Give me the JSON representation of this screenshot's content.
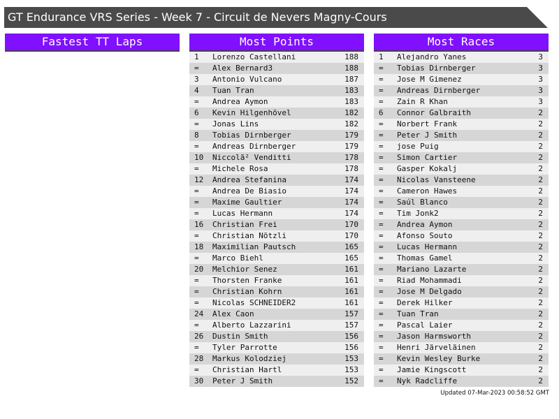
{
  "title": "GT Endurance VRS Series - Week 7 - Circuit de Nevers Magny-Cours",
  "panels": {
    "fastest": {
      "title": "Fastest TT Laps",
      "rows": []
    },
    "points": {
      "title": "Most Points",
      "rows": [
        [
          "1",
          "Lorenzo Castellani",
          "188"
        ],
        [
          "=",
          "Alex Bernard3",
          "188"
        ],
        [
          "3",
          "Antonio Vulcano",
          "187"
        ],
        [
          "4",
          "Tuan Tran",
          "183"
        ],
        [
          "=",
          "Andrea Aymon",
          "183"
        ],
        [
          "6",
          "Kevin Hilgenhövel",
          "182"
        ],
        [
          "=",
          "Jonas Lins",
          "182"
        ],
        [
          "8",
          "Tobias Dirnberger",
          "179"
        ],
        [
          "=",
          "Andreas Dirnberger",
          "179"
        ],
        [
          "10",
          "Niccolã² Venditti",
          "178"
        ],
        [
          "=",
          "Michele Rosa",
          "178"
        ],
        [
          "12",
          "Andrea Stefanina",
          "174"
        ],
        [
          "=",
          "Andrea De Biasio",
          "174"
        ],
        [
          "=",
          "Maxime Gaultier",
          "174"
        ],
        [
          "=",
          "Lucas Hermann",
          "174"
        ],
        [
          "16",
          "Christian Frei",
          "170"
        ],
        [
          "=",
          "Christian Nötzli",
          "170"
        ],
        [
          "18",
          "Maximilian Pautsch",
          "165"
        ],
        [
          "=",
          "Marco Biehl",
          "165"
        ],
        [
          "20",
          "Melchior Senez",
          "161"
        ],
        [
          "=",
          "Thorsten Franke",
          "161"
        ],
        [
          "=",
          "Christian Kohrn",
          "161"
        ],
        [
          "=",
          "Nicolas SCHNEIDER2",
          "161"
        ],
        [
          "24",
          "Alex Caon",
          "157"
        ],
        [
          "=",
          "Alberto Lazzarini",
          "157"
        ],
        [
          "26",
          "Dustin Smith",
          "156"
        ],
        [
          "=",
          "Tyler Parrotte",
          "156"
        ],
        [
          "28",
          "Markus Kolodziej",
          "153"
        ],
        [
          "=",
          "Christian Hartl",
          "153"
        ],
        [
          "30",
          "Peter J Smith",
          "152"
        ]
      ]
    },
    "races": {
      "title": "Most Races",
      "rows": [
        [
          "1",
          "Alejandro Yanes",
          "3"
        ],
        [
          "=",
          "Tobias Dirnberger",
          "3"
        ],
        [
          "=",
          "Jose M Gimenez",
          "3"
        ],
        [
          "=",
          "Andreas Dirnberger",
          "3"
        ],
        [
          "=",
          "Zain R Khan",
          "3"
        ],
        [
          "6",
          "Connor Galbraith",
          "2"
        ],
        [
          "=",
          "Norbert Frank",
          "2"
        ],
        [
          "=",
          "Peter J Smith",
          "2"
        ],
        [
          "=",
          "jose Puig",
          "2"
        ],
        [
          "=",
          "Simon Cartier",
          "2"
        ],
        [
          "=",
          "Gasper Kokalj",
          "2"
        ],
        [
          "=",
          "Nicolas Vansteene",
          "2"
        ],
        [
          "=",
          "Cameron Hawes",
          "2"
        ],
        [
          "=",
          "Saúl Blanco",
          "2"
        ],
        [
          "=",
          "Tim Jonk2",
          "2"
        ],
        [
          "=",
          "Andrea Aymon",
          "2"
        ],
        [
          "=",
          "Afonso Souto",
          "2"
        ],
        [
          "=",
          "Lucas Hermann",
          "2"
        ],
        [
          "=",
          "Thomas Gamel",
          "2"
        ],
        [
          "=",
          "Mariano Lazarte",
          "2"
        ],
        [
          "=",
          "Riad Mohammadi",
          "2"
        ],
        [
          "=",
          "Jose M Delgado",
          "2"
        ],
        [
          "=",
          "Derek Hilker",
          "2"
        ],
        [
          "=",
          "Tuan Tran",
          "2"
        ],
        [
          "=",
          "Pascal Laier",
          "2"
        ],
        [
          "=",
          "Jason Harmsworth",
          "2"
        ],
        [
          "=",
          "Henri Järveläinen",
          "2"
        ],
        [
          "=",
          "Kevin Wesley Burke",
          "2"
        ],
        [
          "=",
          "Jamie Kingscott",
          "2"
        ],
        [
          "=",
          "Nyk Radcliffe",
          "2"
        ]
      ]
    }
  },
  "updated": "Updated 07-Mar-2023 00:58:52 GMT",
  "colors": {
    "header": "#8010ff",
    "title_bar": "#4a4a4a"
  }
}
